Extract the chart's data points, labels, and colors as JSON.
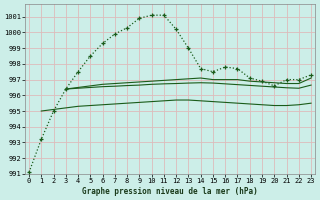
{
  "xlabel": "Graphe pression niveau de la mer (hPa)",
  "bg_color": "#cceee8",
  "grid_color": "#ddbbbb",
  "line_color": "#1a5c1a",
  "ylim": [
    991,
    1001.8
  ],
  "xlim": [
    -0.3,
    23.3
  ],
  "yticks": [
    991,
    992,
    993,
    994,
    995,
    996,
    997,
    998,
    999,
    1000,
    1001
  ],
  "xticks": [
    0,
    1,
    2,
    3,
    4,
    5,
    6,
    7,
    8,
    9,
    10,
    11,
    12,
    13,
    14,
    15,
    16,
    17,
    18,
    19,
    20,
    21,
    22,
    23
  ],
  "series_main_x": [
    0,
    1,
    2,
    3,
    4,
    5,
    6,
    7,
    8,
    9,
    10,
    11,
    12,
    13,
    14,
    15,
    16,
    17,
    18,
    19,
    20,
    21,
    22,
    23
  ],
  "series_main_y": [
    991.1,
    993.2,
    995.0,
    996.4,
    997.5,
    998.5,
    999.3,
    999.9,
    1000.3,
    1000.9,
    1001.1,
    1001.1,
    1000.2,
    999.0,
    997.7,
    997.5,
    997.8,
    997.7,
    997.1,
    996.9,
    996.6,
    997.0,
    997.0,
    997.3
  ],
  "series_a_x": [
    3,
    4,
    5,
    6,
    7,
    8,
    9,
    10,
    11,
    12,
    13,
    14,
    15,
    16,
    17,
    18,
    19,
    20,
    21,
    22,
    23
  ],
  "series_a_y": [
    996.4,
    996.5,
    996.6,
    996.7,
    996.75,
    996.8,
    996.85,
    996.9,
    996.95,
    997.0,
    997.05,
    997.1,
    997.0,
    997.0,
    997.0,
    996.9,
    996.85,
    996.8,
    996.75,
    996.75,
    997.1
  ],
  "series_b_x": [
    3,
    4,
    5,
    6,
    7,
    8,
    9,
    10,
    11,
    12,
    13,
    14,
    15,
    16,
    17,
    18,
    19,
    20,
    21,
    22,
    23
  ],
  "series_b_y": [
    996.4,
    996.45,
    996.5,
    996.55,
    996.58,
    996.62,
    996.65,
    996.7,
    996.73,
    996.75,
    996.78,
    996.8,
    996.78,
    996.73,
    996.68,
    996.63,
    996.58,
    996.53,
    996.48,
    996.45,
    996.65
  ],
  "series_c_x": [
    1,
    2,
    3,
    4,
    5,
    6,
    7,
    8,
    9,
    10,
    11,
    12,
    13,
    14,
    15,
    16,
    17,
    18,
    19,
    20,
    21,
    22,
    23
  ],
  "series_c_y": [
    995.0,
    995.1,
    995.2,
    995.3,
    995.35,
    995.4,
    995.45,
    995.5,
    995.55,
    995.6,
    995.65,
    995.7,
    995.7,
    995.65,
    995.6,
    995.55,
    995.5,
    995.45,
    995.4,
    995.35,
    995.35,
    995.4,
    995.5
  ]
}
